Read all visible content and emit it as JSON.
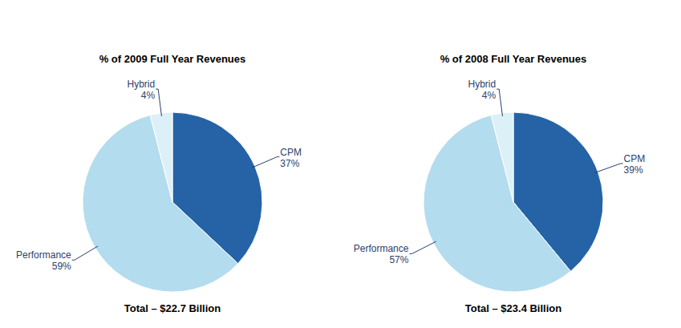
{
  "chart_data": [
    {
      "type": "pie",
      "title": "% of 2009 Full Year Revenues",
      "subtitle": "Total – $22.7 Billion",
      "categories": [
        "CPM",
        "Performance",
        "Hybrid"
      ],
      "values": [
        37,
        59,
        4
      ],
      "value_labels": [
        "37%",
        "59%",
        "4%"
      ],
      "colors": [
        "#2563a6",
        "#b3dcee",
        "#dcf0f7"
      ],
      "data_labels": true
    },
    {
      "type": "pie",
      "title": "% of 2008 Full Year Revenues",
      "subtitle": "Total – $23.4 Billion",
      "categories": [
        "CPM",
        "Performance",
        "Hybrid"
      ],
      "values": [
        39,
        57,
        4
      ],
      "value_labels": [
        "39%",
        "57%",
        "4%"
      ],
      "colors": [
        "#2563a6",
        "#b3dcee",
        "#dcf0f7"
      ],
      "data_labels": true
    }
  ]
}
